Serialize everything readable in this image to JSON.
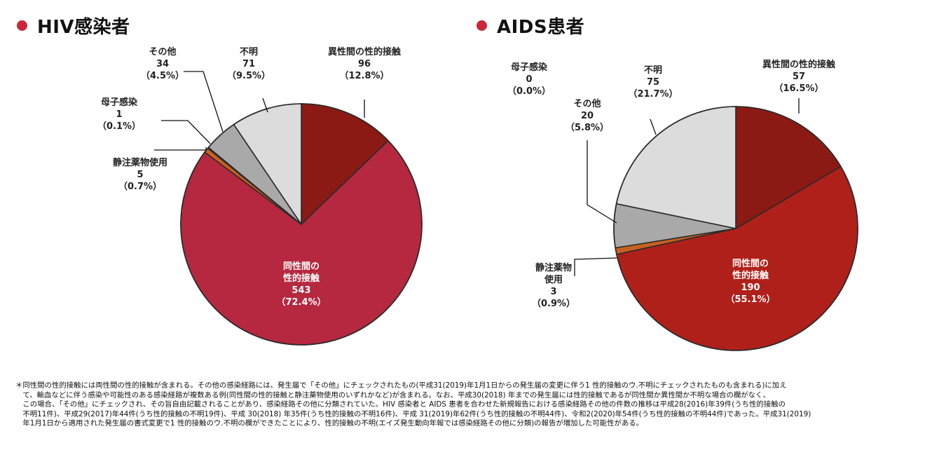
{
  "chart_data": [
    {
      "type": "pie",
      "title": "HIV感染者",
      "series": [
        {
          "name": "異性間の性的接触",
          "lines": [
            "異性間の性的接触",
            "96",
            "（12.8%）"
          ],
          "value": 96,
          "percent": 12.8,
          "color": "#8b1a14"
        },
        {
          "name": "同性間の性的接触",
          "lines": [
            "同性間の",
            "性的接触",
            "543",
            "（72.4%）"
          ],
          "value": 543,
          "percent": 72.4,
          "color": "#b5283f",
          "inside": true
        },
        {
          "name": "静注薬物使用",
          "lines": [
            "静注薬物使用",
            "5",
            "（0.7%）"
          ],
          "value": 5,
          "percent": 0.7,
          "color": "#c8601f"
        },
        {
          "name": "母子感染",
          "lines": [
            "母子感染",
            "1",
            "（0.1%）"
          ],
          "value": 1,
          "percent": 0.1,
          "color": "#f0f0f0"
        },
        {
          "name": "その他",
          "lines": [
            "その他",
            "34",
            "（4.5%）"
          ],
          "value": 34,
          "percent": 4.5,
          "color": "#a9a9a9"
        },
        {
          "name": "不明",
          "lines": [
            "不明",
            "71",
            "（9.5%）"
          ],
          "value": 71,
          "percent": 9.5,
          "color": "#dcdcdc"
        }
      ]
    },
    {
      "type": "pie",
      "title": "AIDS患者",
      "series": [
        {
          "name": "異性間の性的接触",
          "lines": [
            "異性間の性的接触",
            "57",
            "（16.5%）"
          ],
          "value": 57,
          "percent": 16.5,
          "color": "#8b1a14"
        },
        {
          "name": "同性間の性的接触",
          "lines": [
            "同性間の",
            "性的接触",
            "190",
            "（55.1%）"
          ],
          "value": 190,
          "percent": 55.1,
          "color": "#b0201a",
          "inside": true
        },
        {
          "name": "静注薬物使用",
          "lines": [
            "静注薬物",
            "使用",
            "3",
            "（0.9%）"
          ],
          "value": 3,
          "percent": 0.9,
          "color": "#c8601f"
        },
        {
          "name": "母子感染",
          "lines": [
            "母子感染",
            "0",
            "（0.0%）"
          ],
          "value": 0,
          "percent": 0.0,
          "color": "#f0f0f0"
        },
        {
          "name": "その他",
          "lines": [
            "その他",
            "20",
            "（5.8%）"
          ],
          "value": 20,
          "percent": 5.8,
          "color": "#a9a9a9"
        },
        {
          "name": "不明",
          "lines": [
            "不明",
            "75",
            "（21.7%）"
          ],
          "value": 75,
          "percent": 21.7,
          "color": "#dcdcdc"
        }
      ]
    }
  ],
  "colors": {
    "dot": "#c8283a"
  },
  "footnote": "＊同性間の性的接触には両性間の性的接触が含まれる。その他の感染経路には、発生届で「その他」にチェックされたもの(平成31(2019)年1月1日からの発生届の変更に伴う1 性的接触のウ.不明にチェックされたものも含まれる)に加え\n　て、輸血などに伴う感染や可能性のある感染経路が複数ある例(同性間の性的接触と静注薬物使用のいずれかなど)が含まれる。なお、平成30(2018) 年までの発生届には性的接触であるが同性間か異性間か不明な場合の欄がなく、\n　この場合、「その他」にチェックされ、その旨自由記載されることがあり、感染経路その他に分類されていた。HIV 感染者と AIDS 患者を合わせた新規報告における感染経路その他の件数の推移は平成28(2016)年39件(うち性的接触の\n　不明11件)、平成29(2017)年44件(うち性的接触の不明19件)、平成 30(2018) 年35件(うち性的接触の不明16件)、平成 31(2019)年62件(うち性的接触の不明44件)、令和2(2020)年54件(うち性的接触の不明44件)であった。平成31(2019)\n　年1月1日から適用された発生届の書式変更で1 性的接触のウ.不明の欄ができたことにより、性的接触の不明(エイズ発生動向年報では感染経路その他に分類)の報告が増加した可能性がある。"
}
